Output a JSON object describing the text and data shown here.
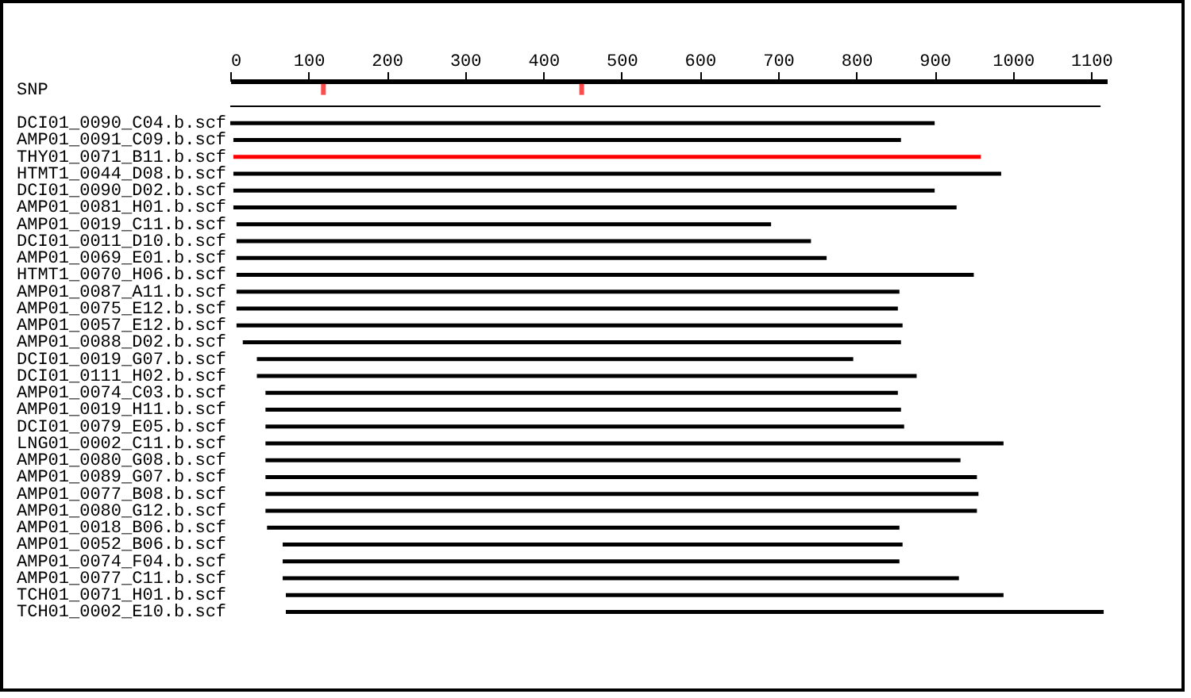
{
  "chart_data": {
    "type": "bar",
    "orientation": "horizontal",
    "xlim": [
      0,
      1120
    ],
    "xticks": [
      0,
      100,
      200,
      300,
      400,
      500,
      600,
      700,
      800,
      900,
      1000,
      1100
    ],
    "grid": false,
    "categories": [
      "SNP",
      null,
      "DCI01_0090_C04.b.scf",
      "AMP01_0091_C09.b.scf",
      "THY01_0071_B11.b.scf",
      "HTMT1_0044_D08.b.scf",
      "DCI01_0090_D02.b.scf",
      "AMP01_0081_H01.b.scf",
      "AMP01_0019_C11.b.scf",
      "DCI01_0011_D10.b.scf",
      "AMP01_0069_E01.b.scf",
      "HTMT1_0070_H06.b.scf",
      "AMP01_0087_A11.b.scf",
      "AMP01_0075_E12.b.scf",
      "AMP01_0057_E12.b.scf",
      "AMP01_0088_D02.b.scf",
      "DCI01_0019_G07.b.scf",
      "DCI01_0111_H02.b.scf",
      "AMP01_0074_C03.b.scf",
      "AMP01_0019_H11.b.scf",
      "DCI01_0079_E05.b.scf",
      "LNG01_0002_C11.b.scf",
      "AMP01_0080_G08.b.scf",
      "AMP01_0089_G07.b.scf",
      "AMP01_0077_B08.b.scf",
      "AMP01_0080_G12.b.scf",
      "AMP01_0018_B06.b.scf",
      "AMP01_0052_B06.b.scf",
      "AMP01_0074_F04.b.scf",
      "AMP01_0077_C11.b.scf",
      "TCH01_0071_H01.b.scf",
      "TCH01_0002_E10.b.scf"
    ],
    "series": [
      {
        "base": [
          null,
          0,
          0,
          4,
          4,
          4,
          4,
          4,
          8,
          8,
          8,
          8,
          8,
          8,
          8,
          16,
          34,
          34,
          45,
          45,
          45,
          45,
          45,
          45,
          45,
          45,
          47,
          67,
          67,
          67,
          71,
          71
        ],
        "values": [
          null,
          1112,
          900,
          853,
          955,
          981,
          896,
          924,
          683,
          734,
          754,
          942,
          847,
          845,
          851,
          841,
          762,
          843,
          808,
          812,
          816,
          943,
          888,
          909,
          911,
          909,
          808,
          792,
          788,
          864,
          917,
          1045
        ],
        "colors": [
          null,
          "#000000",
          "#000000",
          "#000000",
          "#ff0000",
          "#000000",
          "#000000",
          "#000000",
          "#000000",
          "#000000",
          "#000000",
          "#000000",
          "#000000",
          "#000000",
          "#000000",
          "#000000",
          "#000000",
          "#000000",
          "#000000",
          "#000000",
          "#000000",
          "#000000",
          "#000000",
          "#000000",
          "#000000",
          "#000000",
          "#000000",
          "#000000",
          "#000000",
          "#000000",
          "#000000",
          "#000000"
        ]
      },
      {
        "type": "scatter",
        "x": [
          "SNP",
          "SNP"
        ],
        "values": [
          119,
          449
        ],
        "color": "#ff0000"
      }
    ]
  }
}
